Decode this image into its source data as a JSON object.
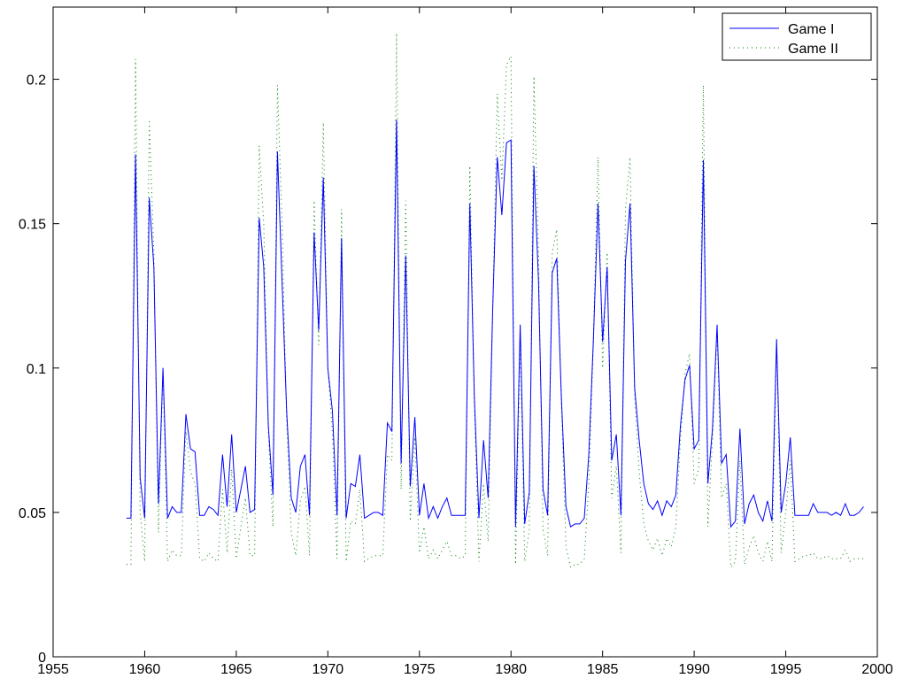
{
  "chart_data": {
    "type": "line",
    "title": "",
    "xlabel": "",
    "ylabel": "",
    "xlim": [
      1955,
      2000
    ],
    "ylim": [
      0,
      0.225
    ],
    "xticks": [
      1955,
      1960,
      1965,
      1970,
      1975,
      1980,
      1985,
      1990,
      1995,
      2000
    ],
    "xtick_labels": [
      "1955",
      "1960",
      "1965",
      "1970",
      "1975",
      "1980",
      "1985",
      "1990",
      "1995",
      "2000"
    ],
    "yticks": [
      0,
      0.05,
      0.1,
      0.15,
      0.2
    ],
    "ytick_labels": [
      "0",
      "0.05",
      "0.1",
      "0.15",
      "0.2"
    ],
    "grid": false,
    "legend_position": "top-right",
    "series": [
      {
        "name": "Game I",
        "style": "solid",
        "color": "#0000ff",
        "x": [
          1959.0,
          1959.25,
          1959.5,
          1959.75,
          1960.0,
          1960.25,
          1960.5,
          1960.75,
          1961.0,
          1961.25,
          1961.5,
          1961.75,
          1962.0,
          1962.25,
          1962.5,
          1962.75,
          1963.0,
          1963.25,
          1963.5,
          1963.75,
          1964.0,
          1964.25,
          1964.5,
          1964.75,
          1965.0,
          1965.25,
          1965.5,
          1965.75,
          1966.0,
          1966.25,
          1966.5,
          1966.75,
          1967.0,
          1967.25,
          1967.5,
          1967.75,
          1968.0,
          1968.25,
          1968.5,
          1968.75,
          1969.0,
          1969.25,
          1969.5,
          1969.75,
          1970.0,
          1970.25,
          1970.5,
          1970.75,
          1971.0,
          1971.25,
          1971.5,
          1971.75,
          1972.0,
          1972.25,
          1972.5,
          1972.75,
          1973.0,
          1973.25,
          1973.5,
          1973.75,
          1974.0,
          1974.25,
          1974.5,
          1974.75,
          1975.0,
          1975.25,
          1975.5,
          1975.75,
          1976.0,
          1976.25,
          1976.5,
          1976.75,
          1977.0,
          1977.25,
          1977.5,
          1977.75,
          1978.0,
          1978.25,
          1978.5,
          1978.75,
          1979.0,
          1979.25,
          1979.5,
          1979.75,
          1980.0,
          1980.25,
          1980.5,
          1980.75,
          1981.0,
          1981.25,
          1981.5,
          1981.75,
          1982.0,
          1982.25,
          1982.5,
          1982.75,
          1983.0,
          1983.25,
          1983.5,
          1983.75,
          1984.0,
          1984.25,
          1984.5,
          1984.75,
          1985.0,
          1985.25,
          1985.5,
          1985.75,
          1986.0,
          1986.25,
          1986.5,
          1986.75,
          1987.0,
          1987.25,
          1987.5,
          1987.75,
          1988.0,
          1988.25,
          1988.5,
          1988.75,
          1989.0,
          1989.25,
          1989.5,
          1989.75,
          1990.0,
          1990.25,
          1990.5,
          1990.75,
          1991.0,
          1991.25,
          1991.5,
          1991.75,
          1992.0,
          1992.25,
          1992.5,
          1992.75,
          1993.0,
          1993.25,
          1993.5,
          1993.75,
          1994.0,
          1994.25,
          1994.5,
          1994.75,
          1995.0,
          1995.25,
          1995.5,
          1995.75,
          1996.0,
          1996.25,
          1996.5,
          1996.75,
          1997.0,
          1997.25,
          1997.5,
          1997.75,
          1998.0,
          1998.25,
          1998.5,
          1998.75,
          1999.0,
          1999.25
        ],
        "y": [
          0.048,
          0.048,
          0.174,
          0.062,
          0.048,
          0.159,
          0.135,
          0.053,
          0.1,
          0.048,
          0.052,
          0.05,
          0.05,
          0.084,
          0.072,
          0.071,
          0.049,
          0.049,
          0.052,
          0.051,
          0.049,
          0.07,
          0.052,
          0.077,
          0.05,
          0.058,
          0.066,
          0.05,
          0.051,
          0.152,
          0.135,
          0.08,
          0.056,
          0.175,
          0.13,
          0.085,
          0.055,
          0.05,
          0.066,
          0.07,
          0.049,
          0.147,
          0.113,
          0.166,
          0.1,
          0.085,
          0.049,
          0.145,
          0.048,
          0.06,
          0.059,
          0.07,
          0.048,
          0.049,
          0.05,
          0.05,
          0.049,
          0.081,
          0.078,
          0.186,
          0.067,
          0.139,
          0.059,
          0.083,
          0.049,
          0.06,
          0.048,
          0.052,
          0.048,
          0.052,
          0.055,
          0.049,
          0.049,
          0.049,
          0.049,
          0.157,
          0.09,
          0.048,
          0.075,
          0.055,
          0.12,
          0.173,
          0.153,
          0.178,
          0.179,
          0.045,
          0.115,
          0.046,
          0.057,
          0.17,
          0.13,
          0.058,
          0.049,
          0.133,
          0.138,
          0.09,
          0.052,
          0.045,
          0.046,
          0.046,
          0.048,
          0.07,
          0.11,
          0.157,
          0.109,
          0.135,
          0.068,
          0.077,
          0.049,
          0.137,
          0.157,
          0.093,
          0.075,
          0.06,
          0.053,
          0.051,
          0.054,
          0.049,
          0.054,
          0.052,
          0.056,
          0.08,
          0.096,
          0.101,
          0.072,
          0.075,
          0.172,
          0.06,
          0.079,
          0.115,
          0.067,
          0.07,
          0.045,
          0.047,
          0.079,
          0.046,
          0.053,
          0.056,
          0.05,
          0.047,
          0.054,
          0.047,
          0.11,
          0.05,
          0.06,
          0.076,
          0.049,
          0.049,
          0.049,
          0.049,
          0.053,
          0.05,
          0.05,
          0.05,
          0.049,
          0.05,
          0.049,
          0.053,
          0.049,
          0.049,
          0.05,
          0.052
        ]
      },
      {
        "name": "Game II",
        "style": "dotted",
        "color": "#008000",
        "x": [
          1959.0,
          1959.25,
          1959.5,
          1959.75,
          1960.0,
          1960.25,
          1960.5,
          1960.75,
          1961.0,
          1961.25,
          1961.5,
          1961.75,
          1962.0,
          1962.25,
          1962.5,
          1962.75,
          1963.0,
          1963.25,
          1963.5,
          1963.75,
          1964.0,
          1964.25,
          1964.5,
          1964.75,
          1965.0,
          1965.25,
          1965.5,
          1965.75,
          1966.0,
          1966.25,
          1966.5,
          1966.75,
          1967.0,
          1967.25,
          1967.5,
          1967.75,
          1968.0,
          1968.25,
          1968.5,
          1968.75,
          1969.0,
          1969.25,
          1969.5,
          1969.75,
          1970.0,
          1970.25,
          1970.5,
          1970.75,
          1971.0,
          1971.25,
          1971.5,
          1971.75,
          1972.0,
          1972.25,
          1972.5,
          1972.75,
          1973.0,
          1973.25,
          1973.5,
          1973.75,
          1974.0,
          1974.25,
          1974.5,
          1974.75,
          1975.0,
          1975.25,
          1975.5,
          1975.75,
          1976.0,
          1976.25,
          1976.5,
          1976.75,
          1977.0,
          1977.25,
          1977.5,
          1977.75,
          1978.0,
          1978.25,
          1978.5,
          1978.75,
          1979.0,
          1979.25,
          1979.5,
          1979.75,
          1980.0,
          1980.25,
          1980.5,
          1980.75,
          1981.0,
          1981.25,
          1981.5,
          1981.75,
          1982.0,
          1982.25,
          1982.5,
          1982.75,
          1983.0,
          1983.25,
          1983.5,
          1983.75,
          1984.0,
          1984.25,
          1984.5,
          1984.75,
          1985.0,
          1985.25,
          1985.5,
          1985.75,
          1986.0,
          1986.25,
          1986.5,
          1986.75,
          1987.0,
          1987.25,
          1987.5,
          1987.75,
          1988.0,
          1988.25,
          1988.5,
          1988.75,
          1989.0,
          1989.25,
          1989.5,
          1989.75,
          1990.0,
          1990.25,
          1990.5,
          1990.75,
          1991.0,
          1991.25,
          1991.5,
          1991.75,
          1992.0,
          1992.25,
          1992.5,
          1992.75,
          1993.0,
          1993.25,
          1993.5,
          1993.75,
          1994.0,
          1994.25,
          1994.5,
          1994.75,
          1995.0,
          1995.25,
          1995.5,
          1995.75,
          1996.0,
          1996.25,
          1996.5,
          1996.75,
          1997.0,
          1997.25,
          1997.5,
          1997.75,
          1998.0,
          1998.25,
          1998.5,
          1998.75,
          1999.0,
          1999.25
        ],
        "y": [
          0.032,
          0.032,
          0.207,
          0.05,
          0.033,
          0.186,
          0.14,
          0.043,
          0.1,
          0.033,
          0.037,
          0.035,
          0.035,
          0.078,
          0.064,
          0.06,
          0.034,
          0.033,
          0.036,
          0.034,
          0.033,
          0.058,
          0.036,
          0.065,
          0.034,
          0.045,
          0.055,
          0.035,
          0.035,
          0.177,
          0.15,
          0.078,
          0.045,
          0.198,
          0.15,
          0.082,
          0.043,
          0.035,
          0.054,
          0.059,
          0.035,
          0.158,
          0.108,
          0.185,
          0.1,
          0.078,
          0.034,
          0.155,
          0.033,
          0.047,
          0.046,
          0.058,
          0.033,
          0.034,
          0.035,
          0.035,
          0.035,
          0.07,
          0.068,
          0.216,
          0.058,
          0.158,
          0.047,
          0.076,
          0.036,
          0.045,
          0.034,
          0.037,
          0.034,
          0.037,
          0.04,
          0.035,
          0.035,
          0.034,
          0.035,
          0.17,
          0.088,
          0.033,
          0.06,
          0.04,
          0.12,
          0.195,
          0.165,
          0.205,
          0.208,
          0.032,
          0.11,
          0.033,
          0.044,
          0.201,
          0.14,
          0.044,
          0.035,
          0.14,
          0.148,
          0.088,
          0.038,
          0.031,
          0.032,
          0.032,
          0.034,
          0.06,
          0.11,
          0.173,
          0.1,
          0.14,
          0.055,
          0.066,
          0.036,
          0.155,
          0.173,
          0.09,
          0.064,
          0.046,
          0.04,
          0.037,
          0.041,
          0.035,
          0.041,
          0.038,
          0.045,
          0.075,
          0.098,
          0.105,
          0.06,
          0.065,
          0.198,
          0.045,
          0.075,
          0.113,
          0.055,
          0.06,
          0.031,
          0.033,
          0.068,
          0.032,
          0.038,
          0.042,
          0.036,
          0.033,
          0.04,
          0.033,
          0.108,
          0.036,
          0.05,
          0.068,
          0.033,
          0.034,
          0.035,
          0.035,
          0.036,
          0.034,
          0.034,
          0.035,
          0.034,
          0.034,
          0.034,
          0.037,
          0.033,
          0.034,
          0.034,
          0.034
        ]
      }
    ]
  }
}
